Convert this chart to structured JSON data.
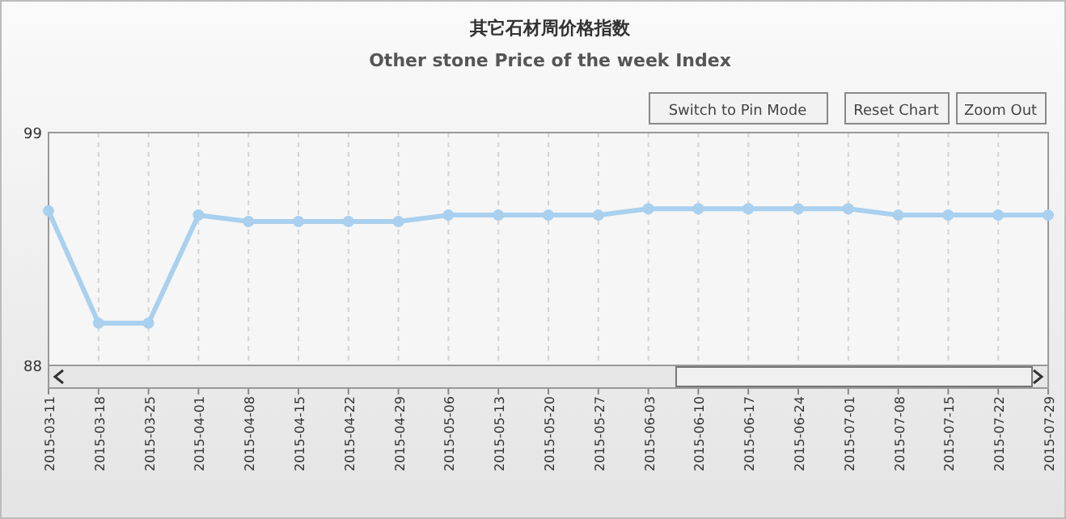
{
  "chart_data": {
    "type": "line",
    "title": "其它石材周价格指数",
    "subtitle": "Other stone Price of the week Index",
    "annotations": [
      "Switch to Pin Mode",
      "Reset Chart",
      "Zoom Out"
    ],
    "categories": [
      "2015-03-11",
      "2015-03-18",
      "2015-03-25",
      "2015-04-01",
      "2015-04-08",
      "2015-04-15",
      "2015-04-22",
      "2015-04-29",
      "2015-05-06",
      "2015-05-13",
      "2015-05-20",
      "2015-05-27",
      "2015-06-03",
      "2015-06-10",
      "2015-06-17",
      "2015-06-24",
      "2015-07-01",
      "2015-07-08",
      "2015-07-15",
      "2015-07-22",
      "2015-07-29"
    ],
    "series": [
      {
        "color": "#a9d0ee",
        "values": [
          95.3,
          90.0,
          90.0,
          95.1,
          94.8,
          94.8,
          94.8,
          94.8,
          95.1,
          95.1,
          95.1,
          95.1,
          95.4,
          95.4,
          95.4,
          95.4,
          95.4,
          95.1,
          95.1,
          95.1,
          95.1
        ]
      }
    ],
    "ylim": [
      88,
      99
    ],
    "yticks": [
      88,
      99
    ],
    "grid": "x",
    "marker": "circle"
  }
}
